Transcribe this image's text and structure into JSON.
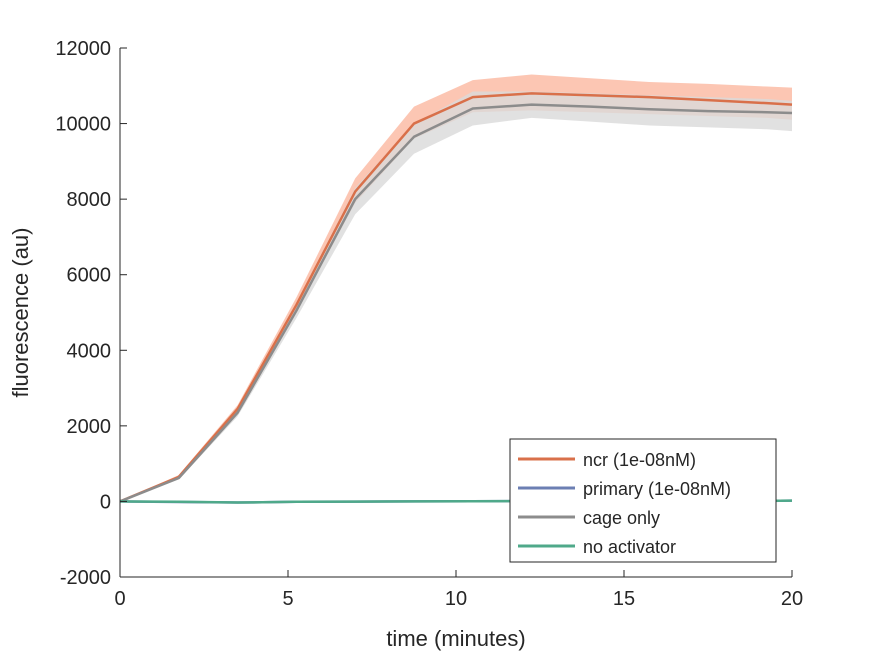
{
  "chart_data": {
    "type": "line",
    "xlabel": "time (minutes)",
    "ylabel": "fluorescence (au)",
    "xlim": [
      0,
      20
    ],
    "ylim": [
      -2000,
      12000
    ],
    "xticks": [
      0,
      5,
      10,
      15,
      20
    ],
    "yticks": [
      -2000,
      0,
      2000,
      4000,
      6000,
      8000,
      10000,
      12000
    ],
    "grid": false,
    "legend_position": "bottom-right",
    "x": [
      0,
      1.75,
      3.5,
      5.25,
      7,
      8.75,
      10.5,
      12.25,
      14,
      15.75,
      17.5,
      19.25,
      20
    ],
    "series": [
      {
        "name": "ncr (1e-08nM)",
        "color": "#D9704A",
        "band_color": "#FBB8A0",
        "values": [
          0,
          650,
          2450,
          5200,
          8200,
          10000,
          10700,
          10800,
          10750,
          10700,
          10620,
          10540,
          10500
        ],
        "lower": [
          0,
          600,
          2350,
          5000,
          7900,
          9600,
          10300,
          10350,
          10300,
          10250,
          10200,
          10150,
          10100
        ],
        "upper": [
          0,
          700,
          2550,
          5400,
          8550,
          10450,
          11150,
          11300,
          11200,
          11100,
          11050,
          10980,
          10950
        ]
      },
      {
        "name": "primary (1e-08nM)",
        "color": "#6C7FB3",
        "band_color": "#C9D0E6",
        "values": [
          0,
          -15,
          -30,
          -10,
          -5,
          0,
          5,
          10,
          10,
          10,
          15,
          15,
          20
        ],
        "lower": [
          0,
          -35,
          -55,
          -35,
          -30,
          -25,
          -20,
          -15,
          -15,
          -15,
          -10,
          -10,
          -5
        ],
        "upper": [
          0,
          5,
          -5,
          15,
          20,
          25,
          30,
          35,
          35,
          35,
          40,
          40,
          45
        ]
      },
      {
        "name": "cage only",
        "color": "#8C8C8C",
        "band_color": "#D9D9D9",
        "values": [
          0,
          620,
          2350,
          5050,
          8000,
          9650,
          10400,
          10500,
          10450,
          10380,
          10330,
          10300,
          10280
        ],
        "lower": [
          0,
          580,
          2250,
          4850,
          7600,
          9200,
          9950,
          10150,
          10050,
          9950,
          9900,
          9850,
          9800
        ],
        "upper": [
          0,
          660,
          2450,
          5250,
          8300,
          10000,
          10850,
          10850,
          10800,
          10750,
          10700,
          10650,
          10600
        ]
      },
      {
        "name": "no activator",
        "color": "#4FA98A",
        "band_color": "#B8DCCE",
        "values": [
          0,
          -10,
          -30,
          -10,
          -5,
          0,
          5,
          10,
          10,
          10,
          15,
          15,
          20
        ],
        "lower": [
          0,
          -30,
          -50,
          -30,
          -25,
          -20,
          -15,
          -10,
          -10,
          -10,
          -5,
          -5,
          0
        ],
        "upper": [
          0,
          10,
          -10,
          10,
          15,
          20,
          25,
          30,
          30,
          30,
          35,
          35,
          40
        ]
      }
    ]
  }
}
